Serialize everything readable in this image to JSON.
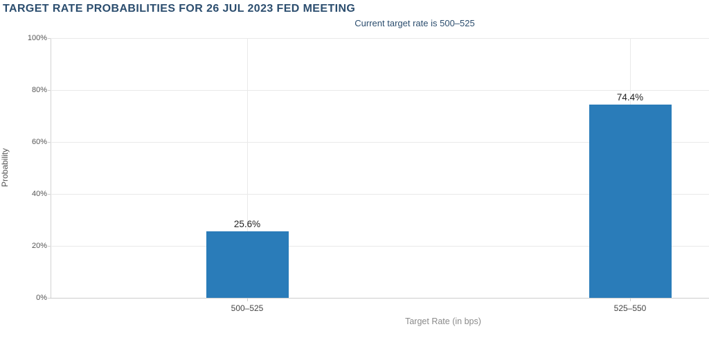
{
  "chart_data": {
    "type": "bar",
    "title": "TARGET RATE PROBABILITIES FOR 26 JUL 2023 FED MEETING",
    "subtitle": "Current target rate is 500–525",
    "categories": [
      "500–525",
      "525–550"
    ],
    "values": [
      25.6,
      74.4
    ],
    "value_labels": [
      "25.6%",
      "74.4%"
    ],
    "xlabel": "Target Rate (in bps)",
    "ylabel": "Probability",
    "ylim": [
      0,
      100
    ],
    "yticks": [
      0,
      20,
      40,
      60,
      80,
      100
    ],
    "ytick_labels": [
      "0%",
      "20%",
      "40%",
      "60%",
      "80%",
      "100%"
    ],
    "grid": "on",
    "legend": "none",
    "colors": {
      "bar": "#2a7cb9",
      "title": "#2b4d6e",
      "subtitle": "#2b4d6e",
      "gridline": "#e9e9e9",
      "axis": "#cccccc"
    }
  }
}
